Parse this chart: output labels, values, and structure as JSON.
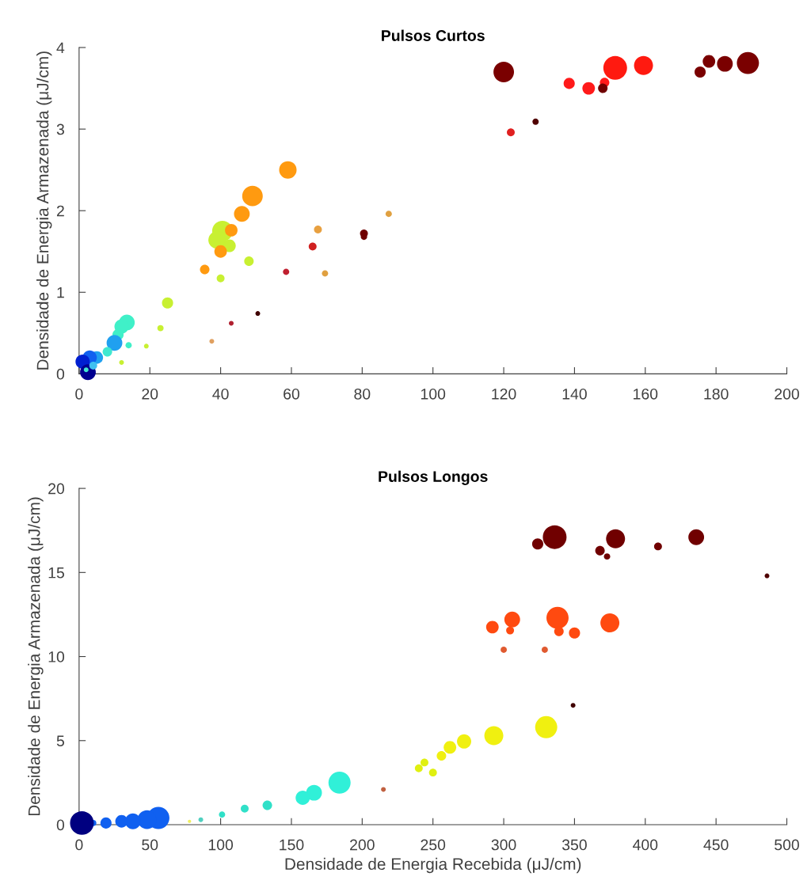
{
  "chart_data": [
    {
      "type": "bubble",
      "title": "Pulsos Curtos",
      "ylabel": "Densidade de Energia Armazenada (μJ/cm)",
      "x": [
        120,
        122,
        129,
        138.5,
        144,
        148.5,
        148,
        151.5,
        159.5,
        175.5,
        178,
        182.5,
        189,
        59,
        49,
        46,
        40.5,
        39,
        42.5,
        43,
        40,
        35.5,
        48,
        40,
        25,
        23,
        19,
        12,
        67.5,
        66,
        58.5,
        69.5,
        80.5,
        80.5,
        87.5,
        37.5,
        43,
        50.5,
        13.5,
        12,
        11,
        14,
        10,
        8,
        5,
        3,
        1,
        2.5,
        4,
        2
      ],
      "values": [
        3.7,
        2.96,
        3.09,
        3.56,
        3.5,
        3.57,
        3.5,
        3.75,
        3.78,
        3.7,
        3.83,
        3.8,
        3.81,
        2.5,
        2.18,
        1.96,
        1.75,
        1.64,
        1.57,
        1.76,
        1.5,
        1.28,
        1.38,
        1.17,
        0.87,
        0.56,
        0.34,
        0.14,
        1.77,
        1.56,
        1.25,
        1.23,
        1.72,
        1.68,
        1.96,
        0.4,
        0.62,
        0.74,
        0.63,
        0.58,
        0.48,
        0.35,
        0.38,
        0.27,
        0.2,
        0.2,
        0.15,
        0.02,
        0.1,
        0.05
      ],
      "sizes": [
        0.75,
        0.11,
        0.07,
        0.22,
        0.28,
        0.16,
        0.16,
        1,
        0.64,
        0.22,
        0.28,
        0.44,
        0.87,
        0.54,
        0.75,
        0.44,
        0.75,
        0.54,
        0.28,
        0.28,
        0.28,
        0.16,
        0.16,
        0.11,
        0.22,
        0.07,
        0.04,
        0.04,
        0.11,
        0.11,
        0.07,
        0.07,
        0.11,
        0.07,
        0.07,
        0.04,
        0.04,
        0.04,
        0.44,
        0.36,
        0.22,
        0.07,
        0.44,
        0.16,
        0.28,
        0.36,
        0.36,
        0.44,
        0.11,
        0.04
      ],
      "colors": [
        "#7a0000",
        "#e02020",
        "#500000",
        "#ff1a1a",
        "#ff1a1a",
        "#ff1a1a",
        "#700000",
        "#ff1a10",
        "#ff1a10",
        "#7a0000",
        "#7a0000",
        "#7a0000",
        "#7a0000",
        "#ff9a10",
        "#ff9a10",
        "#ff9a10",
        "#c8f032",
        "#c8f032",
        "#c8f032",
        "#ff9a10",
        "#ff9a10",
        "#ff9a10",
        "#c8f032",
        "#c8f032",
        "#c8f032",
        "#c8f032",
        "#c8f032",
        "#c8f032",
        "#e8a040",
        "#d02020",
        "#c02030",
        "#e0a040",
        "#700000",
        "#700000",
        "#e0a040",
        "#e0a060",
        "#b02030",
        "#400000",
        "#40f0c8",
        "#40f0c8",
        "#40f0c8",
        "#40f0c8",
        "#20a0f0",
        "#40e8d0",
        "#20a0f0",
        "#1060f0",
        "#0020d0",
        "#000090",
        "#40c0f0",
        "#40e8d0"
      ],
      "xlim": [
        0,
        200
      ],
      "xticks": [
        0,
        20,
        40,
        60,
        80,
        100,
        120,
        140,
        160,
        180,
        200
      ],
      "ylim": [
        0,
        4
      ],
      "yticks": [
        0,
        1,
        2,
        3,
        4
      ],
      "grid": false,
      "marker": "circle"
    },
    {
      "type": "bubble",
      "title": "Pulsos Longos",
      "xlabel": "Densidade de Energia Recebida (μJ/cm)",
      "ylabel": "Densidade de Energia Armazenada (μJ/cm)",
      "x": [
        336,
        324,
        379,
        368,
        373,
        409,
        436,
        486,
        292,
        306,
        304.5,
        338,
        339,
        350,
        375,
        300,
        329,
        349,
        330,
        293,
        272,
        262,
        256,
        244,
        240,
        250,
        215,
        184,
        166,
        158,
        133,
        117,
        101,
        86,
        78,
        56,
        48,
        38,
        30,
        19,
        10,
        2
      ],
      "values": [
        17.1,
        16.7,
        17.0,
        16.3,
        15.95,
        16.55,
        17.1,
        14.8,
        11.75,
        12.2,
        11.55,
        12.3,
        11.5,
        11.4,
        12.0,
        10.4,
        10.4,
        7.1,
        5.8,
        5.3,
        4.95,
        4.6,
        4.1,
        3.7,
        3.35,
        3.1,
        2.1,
        2.5,
        1.9,
        1.6,
        1.15,
        0.95,
        0.6,
        0.3,
        0.2,
        0.4,
        0.3,
        0.2,
        0.2,
        0.1,
        0.1,
        0.1
      ],
      "sizes": [
        1,
        0.22,
        0.64,
        0.16,
        0.07,
        0.11,
        0.44,
        0.04,
        0.28,
        0.44,
        0.11,
        0.87,
        0.16,
        0.22,
        0.64,
        0.07,
        0.07,
        0.04,
        0.87,
        0.64,
        0.36,
        0.28,
        0.16,
        0.11,
        0.11,
        0.11,
        0.04,
        0.87,
        0.44,
        0.36,
        0.16,
        0.11,
        0.07,
        0.04,
        0.02,
        0.87,
        0.64,
        0.44,
        0.28,
        0.22,
        0.07,
        1
      ],
      "colors": [
        "#700000",
        "#700000",
        "#700000",
        "#700000",
        "#700000",
        "#700000",
        "#700000",
        "#500000",
        "#ff4a10",
        "#ff4a10",
        "#ff4a10",
        "#ff4a10",
        "#ff4a10",
        "#ff4a10",
        "#ff4a10",
        "#e05a30",
        "#e05a30",
        "#400000",
        "#f0f010",
        "#f0f010",
        "#f0f010",
        "#f0f010",
        "#f0f010",
        "#e0f010",
        "#e0f010",
        "#e0f010",
        "#c06040",
        "#30f0d8",
        "#30f0d8",
        "#30f0d8",
        "#30e0c8",
        "#30e0c8",
        "#30e0c8",
        "#50d0c0",
        "#f0f060",
        "#1060f0",
        "#1060f0",
        "#1060f0",
        "#1060f0",
        "#1060f0",
        "#1060f0",
        "#000080"
      ],
      "xlim": [
        0,
        500
      ],
      "xticks": [
        0,
        50,
        100,
        150,
        200,
        250,
        300,
        350,
        400,
        450,
        500
      ],
      "ylim": [
        0,
        20
      ],
      "yticks": [
        0,
        5,
        10,
        15,
        20
      ],
      "grid": false,
      "marker": "circle"
    }
  ]
}
